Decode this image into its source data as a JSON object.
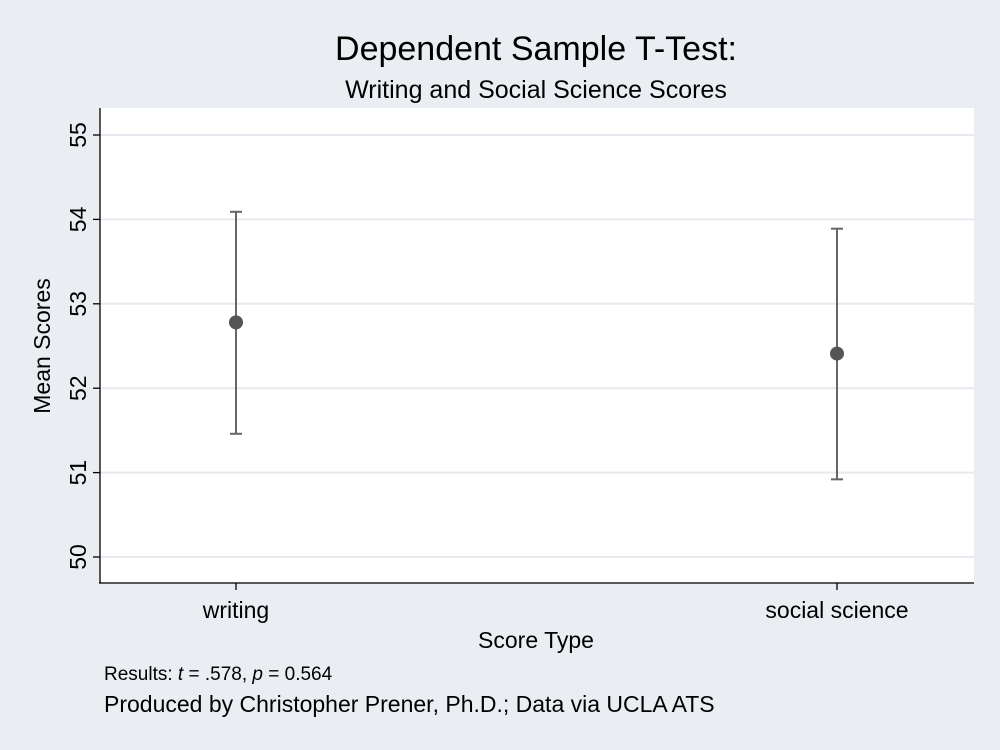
{
  "chart_data": {
    "type": "scatter",
    "title": "Dependent Sample T-Test:",
    "subtitle": "Writing and Social Science Scores",
    "xlabel": "Score Type",
    "ylabel": "Mean Scores",
    "categories": [
      "writing",
      "social science"
    ],
    "means": [
      52.78,
      52.41
    ],
    "ci_lower": [
      51.46,
      50.92
    ],
    "ci_upper": [
      54.09,
      53.89
    ],
    "ylim": [
      50,
      55
    ],
    "yticks": [
      50,
      51,
      52,
      53,
      54,
      55
    ],
    "ytick_labels": [
      "50",
      "51",
      "52",
      "53",
      "54",
      "55"
    ],
    "grid": true,
    "legend": "none",
    "colors": {
      "background": "#eaeef2",
      "plot_area": "#ffffff",
      "gridline": "#e6e9ed",
      "marker": "#555555",
      "errorbar": "#666666",
      "axis": "#000000"
    }
  },
  "notes": {
    "results_prefix": "Results: ",
    "t_symbol": "t",
    "t_text": " = .578, ",
    "p_symbol": "p",
    "p_text": " = 0.564"
  },
  "caption": "Produced by Christopher Prener, Ph.D.; Data via UCLA ATS"
}
